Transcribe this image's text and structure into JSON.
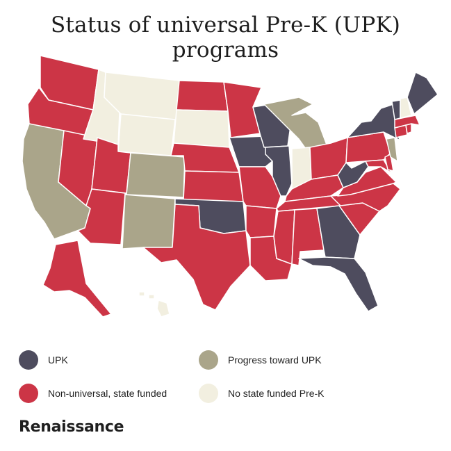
{
  "title": "Status of universal Pre-K (UPK) programs",
  "colors": {
    "upk": "#4e4c5e",
    "progress": "#aaa58a",
    "non_universal": "#cc3546",
    "none": "#f2efe0",
    "border": "#ffffff"
  },
  "legend": [
    {
      "key": "upk",
      "label": "UPK"
    },
    {
      "key": "progress",
      "label": "Progress toward UPK"
    },
    {
      "key": "non_universal",
      "label": "Non-universal, state funded"
    },
    {
      "key": "none",
      "label": "No state funded Pre-K"
    }
  ],
  "states": {
    "upk": [
      "IA",
      "WI",
      "IL",
      "NY",
      "VT",
      "ME",
      "WV",
      "OK",
      "GA",
      "FL"
    ],
    "progress": [
      "CA",
      "CO",
      "NM",
      "MI",
      "NJ"
    ],
    "non_universal": [
      "WA",
      "OR",
      "NV",
      "AZ",
      "UT",
      "TX",
      "ND",
      "NE",
      "KS",
      "MN",
      "MO",
      "AR",
      "LA",
      "MS",
      "AL",
      "TN",
      "KY",
      "OH",
      "PA",
      "VA",
      "NC",
      "SC",
      "MD",
      "DE",
      "CT",
      "MA",
      "RI",
      "AK"
    ],
    "none": [
      "ID",
      "MT",
      "WY",
      "SD",
      "IN",
      "NH",
      "HI"
    ]
  },
  "logo": "Renaissance"
}
